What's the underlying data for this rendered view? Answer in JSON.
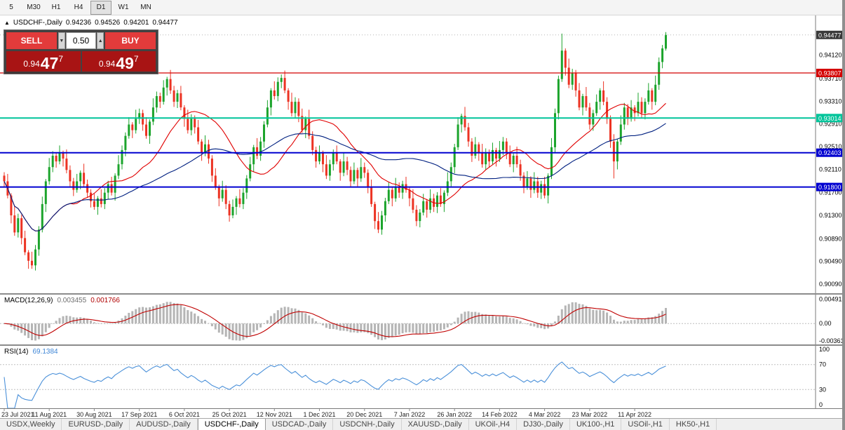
{
  "toolbar": {
    "timeframes": [
      {
        "label": "5",
        "active": false
      },
      {
        "label": "M30",
        "active": false
      },
      {
        "label": "H1",
        "active": false
      },
      {
        "label": "H4",
        "active": false
      },
      {
        "label": "D1",
        "active": true
      },
      {
        "label": "W1",
        "active": false
      },
      {
        "label": "MN",
        "active": false
      }
    ]
  },
  "chart": {
    "symbol_header": {
      "toggle_icon": "▲",
      "symbol": "USDCHF-,Daily",
      "open": "0.94236",
      "high": "0.94526",
      "low": "0.94201",
      "close": "0.94477"
    },
    "trade_panel": {
      "sell_label": "SELL",
      "buy_label": "BUY",
      "volume": "0.50",
      "volume_down_icon": "▼",
      "volume_up_icon": "▲",
      "sell_price": {
        "base": "0.94",
        "big": "47",
        "sup": "7"
      },
      "buy_price": {
        "base": "0.94",
        "big": "49",
        "sup": "7"
      }
    },
    "price_axis": {
      "ticks": [
        "0.94120",
        "0.93710",
        "0.93310",
        "0.92910",
        "0.92510",
        "0.92110",
        "0.91700",
        "0.91300",
        "0.90890",
        "0.90490",
        "0.90090"
      ],
      "current_price": "0.94477",
      "current_bg": "#3a3a3a",
      "levels": [
        {
          "label": "0.93807",
          "color": "#d40000",
          "width": 1.2
        },
        {
          "label": "0.93014",
          "color": "#00c49a",
          "width": 2
        },
        {
          "label": "0.92403",
          "color": "#0000d0",
          "width": 2
        },
        {
          "label": "0.91800",
          "color": "#0000d0",
          "width": 2
        }
      ]
    },
    "indicators": {
      "macd": {
        "label": "MACD(12,26,9)",
        "main_value": "0.003455",
        "signal_value": "0.001766",
        "axis_labels": [
          "0.004913",
          "0.00",
          "-0.00361"
        ]
      },
      "rsi": {
        "label": "RSI(14)",
        "value": "69.1384",
        "axis_labels": [
          "100",
          "70",
          "30",
          "0"
        ]
      }
    }
  },
  "chart_data": {
    "type": "candlestick",
    "title": "USDCHF-,Daily",
    "x_labels": [
      "23 Jul 2021",
      "11 Aug 2021",
      "30 Aug 2021",
      "17 Sep 2021",
      "6 Oct 2021",
      "25 Oct 2021",
      "12 Nov 2021",
      "1 Dec 2021",
      "20 Dec 2021",
      "7 Jan 2022",
      "26 Jan 2022",
      "14 Feb 2022",
      "4 Mar 2022",
      "23 Mar 2022",
      "11 Apr 2022"
    ],
    "bars_per_label": 13,
    "y_range": [
      0.8993,
      0.9482
    ],
    "up_color": "#1ca42c",
    "down_color": "#ec3323",
    "first_open": 0.92,
    "closes": [
      0.919,
      0.9165,
      0.913,
      0.91,
      0.9125,
      0.909,
      0.9065,
      0.905,
      0.9042,
      0.907,
      0.9105,
      0.915,
      0.919,
      0.9215,
      0.9235,
      0.9225,
      0.924,
      0.923,
      0.921,
      0.919,
      0.9175,
      0.919,
      0.9205,
      0.9185,
      0.917,
      0.9155,
      0.9145,
      0.916,
      0.915,
      0.917,
      0.9185,
      0.917,
      0.92,
      0.922,
      0.9245,
      0.927,
      0.929,
      0.928,
      0.93,
      0.931,
      0.929,
      0.927,
      0.9295,
      0.932,
      0.934,
      0.933,
      0.9355,
      0.937,
      0.935,
      0.933,
      0.9345,
      0.932,
      0.93,
      0.928,
      0.93,
      0.9285,
      0.926,
      0.924,
      0.9255,
      0.923,
      0.92,
      0.918,
      0.916,
      0.9175,
      0.915,
      0.913,
      0.9145,
      0.916,
      0.915,
      0.917,
      0.9195,
      0.922,
      0.925,
      0.9235,
      0.926,
      0.929,
      0.932,
      0.935,
      0.934,
      0.9365,
      0.9372,
      0.935,
      0.933,
      0.931,
      0.933,
      0.9305,
      0.928,
      0.93,
      0.927,
      0.9245,
      0.9225,
      0.924,
      0.922,
      0.92,
      0.922,
      0.924,
      0.9225,
      0.9205,
      0.9225,
      0.921,
      0.919,
      0.921,
      0.9195,
      0.9215,
      0.9205,
      0.918,
      0.915,
      0.912,
      0.9105,
      0.913,
      0.9155,
      0.9175,
      0.916,
      0.918,
      0.917,
      0.9185,
      0.9175,
      0.916,
      0.914,
      0.912,
      0.9135,
      0.9155,
      0.914,
      0.916,
      0.9145,
      0.9165,
      0.915,
      0.917,
      0.919,
      0.9215,
      0.925,
      0.929,
      0.9305,
      0.9285,
      0.926,
      0.9235,
      0.9255,
      0.924,
      0.922,
      0.924,
      0.9225,
      0.9245,
      0.923,
      0.9245,
      0.926,
      0.924,
      0.922,
      0.9235,
      0.922,
      0.92,
      0.918,
      0.9195,
      0.9175,
      0.919,
      0.917,
      0.9185,
      0.9165,
      0.92,
      0.925,
      0.931,
      0.937,
      0.942,
      0.939,
      0.936,
      0.938,
      0.935,
      0.932,
      0.934,
      0.932,
      0.929,
      0.931,
      0.933,
      0.935,
      0.933,
      0.93,
      0.926,
      0.9225,
      0.926,
      0.929,
      0.932,
      0.93,
      0.932,
      0.931,
      0.933,
      0.931,
      0.933,
      0.935,
      0.933,
      0.936,
      0.94,
      0.9424,
      0.94477
    ],
    "wick_up_pattern": [
      0.0006,
      0.0013,
      0.0004,
      0.0016,
      0.0008
    ],
    "wick_down_pattern": [
      0.0011,
      0.0005,
      0.0014,
      0.0006,
      0.0009
    ],
    "extreme_overrides": {
      "8": {
        "low": 0.9039
      },
      "47": {
        "high": 0.9373
      },
      "80": {
        "high": 0.9374
      },
      "161": {
        "high": 0.945
      },
      "176": {
        "low": 0.9195
      }
    },
    "last_candle": {
      "open": 0.94236,
      "high": 0.94526,
      "low": 0.94201,
      "close": 0.94477
    },
    "overlays": [
      {
        "name": "ma-fast",
        "period": 20,
        "color": "#e00000"
      },
      {
        "name": "ma-slow",
        "period": 50,
        "color": "#002080"
      }
    ],
    "indicator_panels": {
      "macd": {
        "fast": 12,
        "slow": 26,
        "signal": 9,
        "range": [
          -0.0042,
          0.0058
        ],
        "histogram_color": "#b5b5b5",
        "signal_color": "#c00000"
      },
      "rsi": {
        "period": 14,
        "range": [
          0,
          100
        ],
        "levels": [
          70,
          30
        ],
        "color": "#4a90d9",
        "level_color": "#c0c0c0"
      }
    }
  },
  "tabs": {
    "items": [
      {
        "label": "USDX,Weekly",
        "active": false
      },
      {
        "label": "EURUSD-,Daily",
        "active": false
      },
      {
        "label": "AUDUSD-,Daily",
        "active": false
      },
      {
        "label": "USDCHF-,Daily",
        "active": true
      },
      {
        "label": "USDCAD-,Daily",
        "active": false
      },
      {
        "label": "USDCNH-,Daily",
        "active": false
      },
      {
        "label": "XAUUSD-,Daily",
        "active": false
      },
      {
        "label": "UKOil-,H4",
        "active": false
      },
      {
        "label": "DJ30-,Daily",
        "active": false
      },
      {
        "label": "UK100-,H1",
        "active": false
      },
      {
        "label": "USOil-,H1",
        "active": false
      },
      {
        "label": "HK50-,H1",
        "active": false
      }
    ]
  }
}
